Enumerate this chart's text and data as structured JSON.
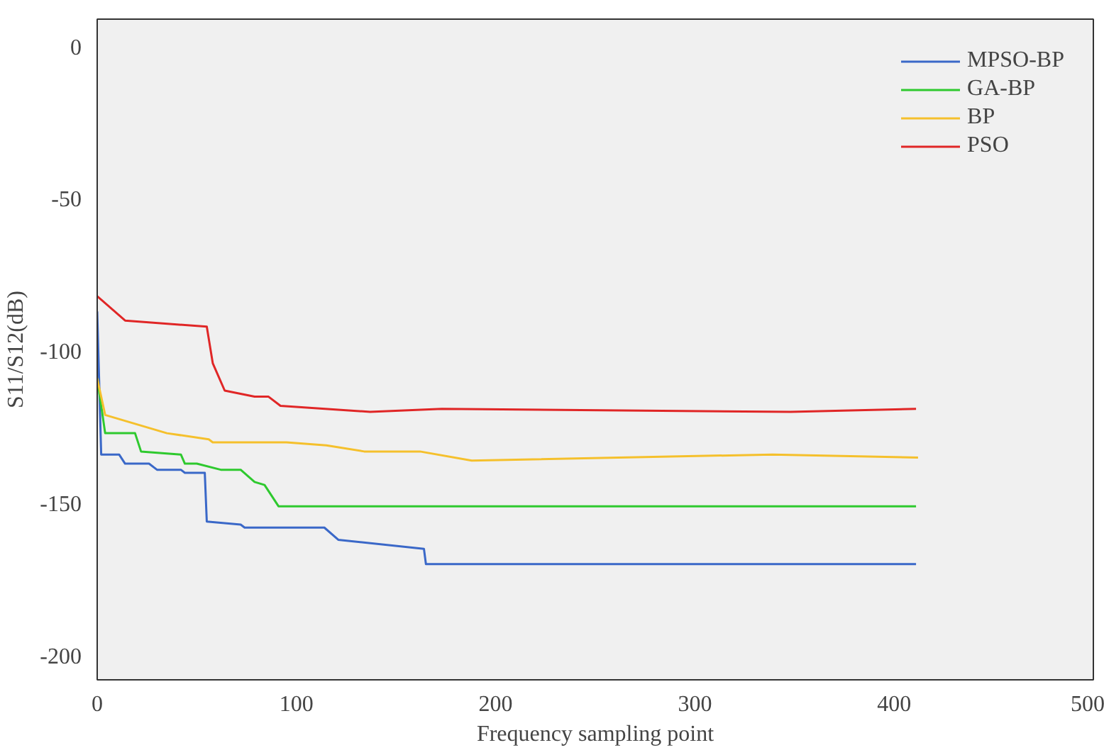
{
  "chart_data": {
    "type": "line",
    "xlabel": "Frequency sampling point",
    "ylabel": "S11/S12(dB)",
    "xlim": [
      0,
      500
    ],
    "ylim": [
      -208,
      9
    ],
    "xticks": [
      0,
      100,
      200,
      300,
      400,
      500
    ],
    "yticks": [
      0,
      -50,
      -100,
      -150,
      -200
    ],
    "grid": false,
    "legend": "top right",
    "line_style": "solid",
    "series": [
      {
        "name": "MPSO-BP",
        "color": "#3a68c8",
        "x": [
          0,
          2,
          11,
          14,
          26,
          30,
          42,
          44,
          54,
          55,
          72,
          74,
          114,
          121,
          164,
          165,
          411
        ],
        "values": [
          -87,
          -134,
          -134,
          -137,
          -137,
          -139,
          -139,
          -140,
          -140,
          -156,
          -157,
          -158,
          -158,
          -162,
          -165,
          -170,
          -170
        ]
      },
      {
        "name": "GA-BP",
        "color": "#2ec92e",
        "x": [
          0,
          4,
          19,
          22,
          42,
          44,
          50,
          62,
          72,
          79,
          84,
          91,
          411
        ],
        "values": [
          -109,
          -127,
          -127,
          -133,
          -134,
          -137,
          -137,
          -139,
          -139,
          -143,
          -144,
          -151,
          -151
        ]
      },
      {
        "name": "BP",
        "color": "#f5c02c",
        "x": [
          0,
          4,
          35,
          56,
          58,
          95,
          115,
          134,
          162,
          188,
          339,
          412
        ],
        "values": [
          -109,
          -121,
          -127,
          -129,
          -130,
          -130,
          -131,
          -133,
          -133,
          -136,
          -134,
          -135
        ]
      },
      {
        "name": "PSO",
        "color": "#e02626",
        "x": [
          0,
          14,
          55,
          58,
          64,
          79,
          86,
          92,
          137,
          173,
          348,
          411
        ],
        "values": [
          -82,
          -90,
          -92,
          -104,
          -113,
          -115,
          -115,
          -118,
          -120,
          -119,
          -120,
          -119
        ]
      }
    ]
  }
}
